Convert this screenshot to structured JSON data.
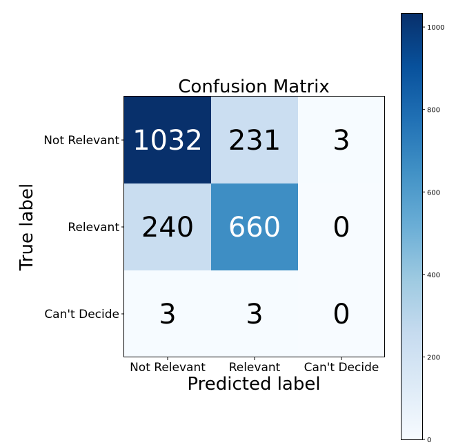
{
  "chart_data": {
    "type": "heatmap",
    "title": "Confusion Matrix",
    "xlabel": "Predicted label",
    "ylabel": "True label",
    "x_categories": [
      "Not Relevant",
      "Relevant",
      "Can't Decide"
    ],
    "y_categories": [
      "Not Relevant",
      "Relevant",
      "Can't Decide"
    ],
    "values": [
      [
        1032,
        231,
        3
      ],
      [
        240,
        660,
        0
      ],
      [
        3,
        3,
        0
      ]
    ],
    "colormap": "Blues",
    "color_range": [
      0,
      1032
    ],
    "colorbar_ticks": [
      0,
      200,
      400,
      600,
      800,
      1000
    ],
    "colorbar_tick_labels": [
      "0",
      "200",
      "400",
      "600",
      "800",
      "1000"
    ]
  }
}
